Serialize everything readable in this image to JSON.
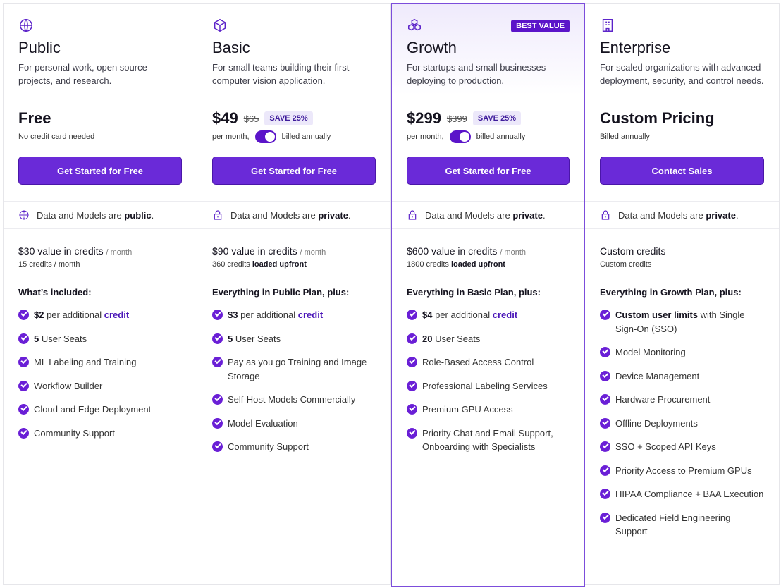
{
  "colors": {
    "accent": "#6a2ad8",
    "badge": "#5b14c9",
    "link": "#4a16b8"
  },
  "plans": [
    {
      "icon": "globe-icon",
      "name": "Public",
      "desc": "For personal work, open source projects, and research.",
      "price": "Free",
      "sub": "No credit card needed",
      "cta": "Get Started for Free",
      "privacy": {
        "icon": "globe-icon",
        "text": "Data and Models are ",
        "bold": "public",
        "end": "."
      },
      "credits": "$30 value in credits",
      "credits_per": "/ month",
      "credits_sub": [
        {
          "t": "15 credits / month"
        }
      ],
      "included": "What’s included:",
      "features": [
        [
          {
            "t": "$2",
            "b": 1
          },
          {
            "t": " per additional "
          },
          {
            "t": "credit",
            "l": 1
          }
        ],
        [
          {
            "t": "5",
            "b": 1
          },
          {
            "t": " User Seats"
          }
        ],
        [
          {
            "t": "ML Labeling and Training"
          }
        ],
        [
          {
            "t": "Workflow Builder"
          }
        ],
        [
          {
            "t": "Cloud and Edge Deployment"
          }
        ],
        [
          {
            "t": "Community Support"
          }
        ]
      ]
    },
    {
      "icon": "cube-icon",
      "name": "Basic",
      "desc": "For small teams building their first computer vision application.",
      "price": "$49",
      "old_price": "$65",
      "save": "SAVE 25%",
      "per": "per month,",
      "billing": "billed annually",
      "billed_annually_toggle": true,
      "cta": "Get Started for Free",
      "privacy": {
        "icon": "lock-icon",
        "text": "Data and Models are ",
        "bold": "private",
        "end": "."
      },
      "credits": "$90 value in credits",
      "credits_per": "/ month",
      "credits_sub": [
        {
          "t": "360 credits "
        },
        {
          "t": "loaded upfront",
          "b": 1
        }
      ],
      "included": "Everything in Public Plan, plus:",
      "features": [
        [
          {
            "t": "$3",
            "b": 1
          },
          {
            "t": " per additional "
          },
          {
            "t": "credit",
            "l": 1
          }
        ],
        [
          {
            "t": "5",
            "b": 1
          },
          {
            "t": " User Seats"
          }
        ],
        [
          {
            "t": "Pay as you go Training and Image Storage"
          }
        ],
        [
          {
            "t": "Self-Host Models Commercially"
          }
        ],
        [
          {
            "t": "Model Evaluation"
          }
        ],
        [
          {
            "t": "Community Support"
          }
        ]
      ]
    },
    {
      "icon": "cubes-icon",
      "name": "Growth",
      "badge": "BEST VALUE",
      "desc": "For startups and small businesses deploying to production.",
      "price": "$299",
      "old_price": "$399",
      "save": "SAVE 25%",
      "per": "per month,",
      "billing": "billed annually",
      "billed_annually_toggle": true,
      "cta": "Get Started for Free",
      "privacy": {
        "icon": "lock-icon",
        "text": "Data and Models are ",
        "bold": "private",
        "end": "."
      },
      "credits": "$600 value in credits",
      "credits_per": "/ month",
      "credits_sub": [
        {
          "t": "1800 credits "
        },
        {
          "t": "loaded upfront",
          "b": 1
        }
      ],
      "included": "Everything in Basic Plan, plus:",
      "features": [
        [
          {
            "t": "$4",
            "b": 1
          },
          {
            "t": " per additional "
          },
          {
            "t": "credit",
            "l": 1
          }
        ],
        [
          {
            "t": "20",
            "b": 1
          },
          {
            "t": " User Seats"
          }
        ],
        [
          {
            "t": "Role-Based Access Control"
          }
        ],
        [
          {
            "t": "Professional Labeling Services"
          }
        ],
        [
          {
            "t": "Premium GPU Access"
          }
        ],
        [
          {
            "t": "Priority Chat and Email Support, Onboarding with Specialists"
          }
        ]
      ]
    },
    {
      "icon": "building-icon",
      "name": "Enterprise",
      "desc": "For scaled organizations with advanced deployment, security, and control needs.",
      "price": "Custom Pricing",
      "sub": "Billed annually",
      "cta": "Contact Sales",
      "privacy": {
        "icon": "lock-icon",
        "text": "Data and Models are ",
        "bold": "private",
        "end": "."
      },
      "credits": "Custom credits",
      "credits_sub": [
        {
          "t": "Custom credits"
        }
      ],
      "included": "Everything in Growth Plan, plus:",
      "features": [
        [
          {
            "t": "Custom user limits",
            "b": 1
          },
          {
            "t": " with Single Sign-On (SSO)"
          }
        ],
        [
          {
            "t": "Model Monitoring"
          }
        ],
        [
          {
            "t": "Device Management"
          }
        ],
        [
          {
            "t": "Hardware Procurement"
          }
        ],
        [
          {
            "t": "Offline Deployments"
          }
        ],
        [
          {
            "t": "SSO + Scoped API Keys"
          }
        ],
        [
          {
            "t": "Priority Access to Premium GPUs"
          }
        ],
        [
          {
            "t": "HIPAA Compliance + BAA Execution"
          }
        ],
        [
          {
            "t": "Dedicated Field Engineering Support"
          }
        ]
      ]
    }
  ]
}
